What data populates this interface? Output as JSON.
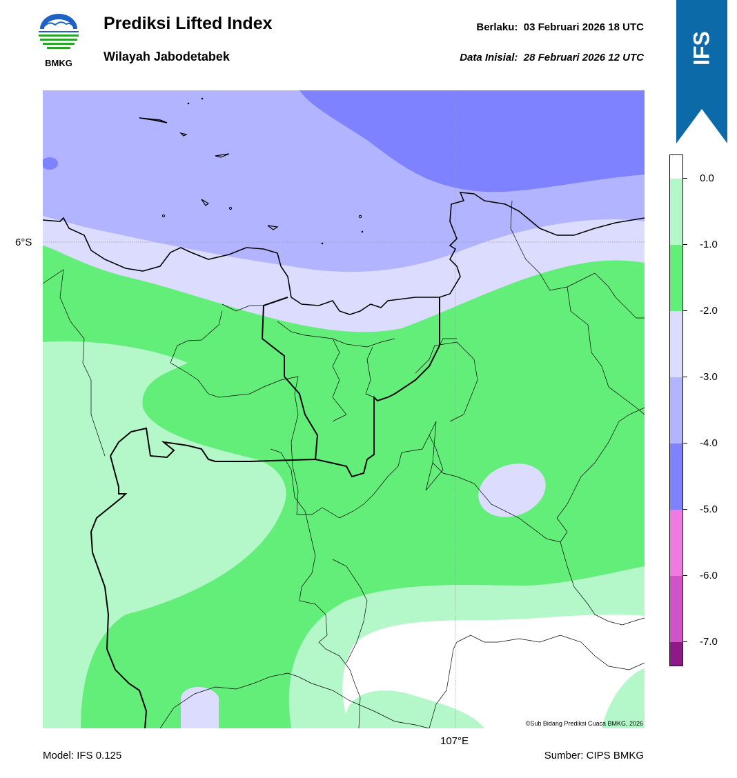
{
  "header": {
    "title": "Prediksi Lifted Index",
    "subtitle": "Wilayah Jabodetabek",
    "valid_label": "Berlaku:",
    "valid_value": "03 Februari 2026 18 UTC",
    "init_label": "Data Inisial:",
    "init_value": "28 Februari 2026 12 UTC"
  },
  "logo": {
    "icon": "bmkg-logo-icon",
    "text": "BMKG"
  },
  "banner": {
    "text": "IFS",
    "color": "#0d6aa8"
  },
  "map": {
    "lat_label": "6°S",
    "lon_label": "107°E",
    "copyright": "©Sub Bidang Prediksi Cuaca BMKG, 2026"
  },
  "colorbar": {
    "labels": [
      "0.0",
      "-1.0",
      "-2.0",
      "-3.0",
      "-4.0",
      "-5.0",
      "-6.0",
      "-7.0"
    ],
    "colors": [
      "#ffffff",
      "#b4f7c8",
      "#63ee7a",
      "#dcdcff",
      "#b2b4ff",
      "#7f82ff",
      "#f07be0",
      "#d053c8",
      "#b83aac",
      "#8d1a86"
    ]
  },
  "footer": {
    "model": "Model: IFS 0.125",
    "source": "Sumber: CIPS BMKG"
  }
}
